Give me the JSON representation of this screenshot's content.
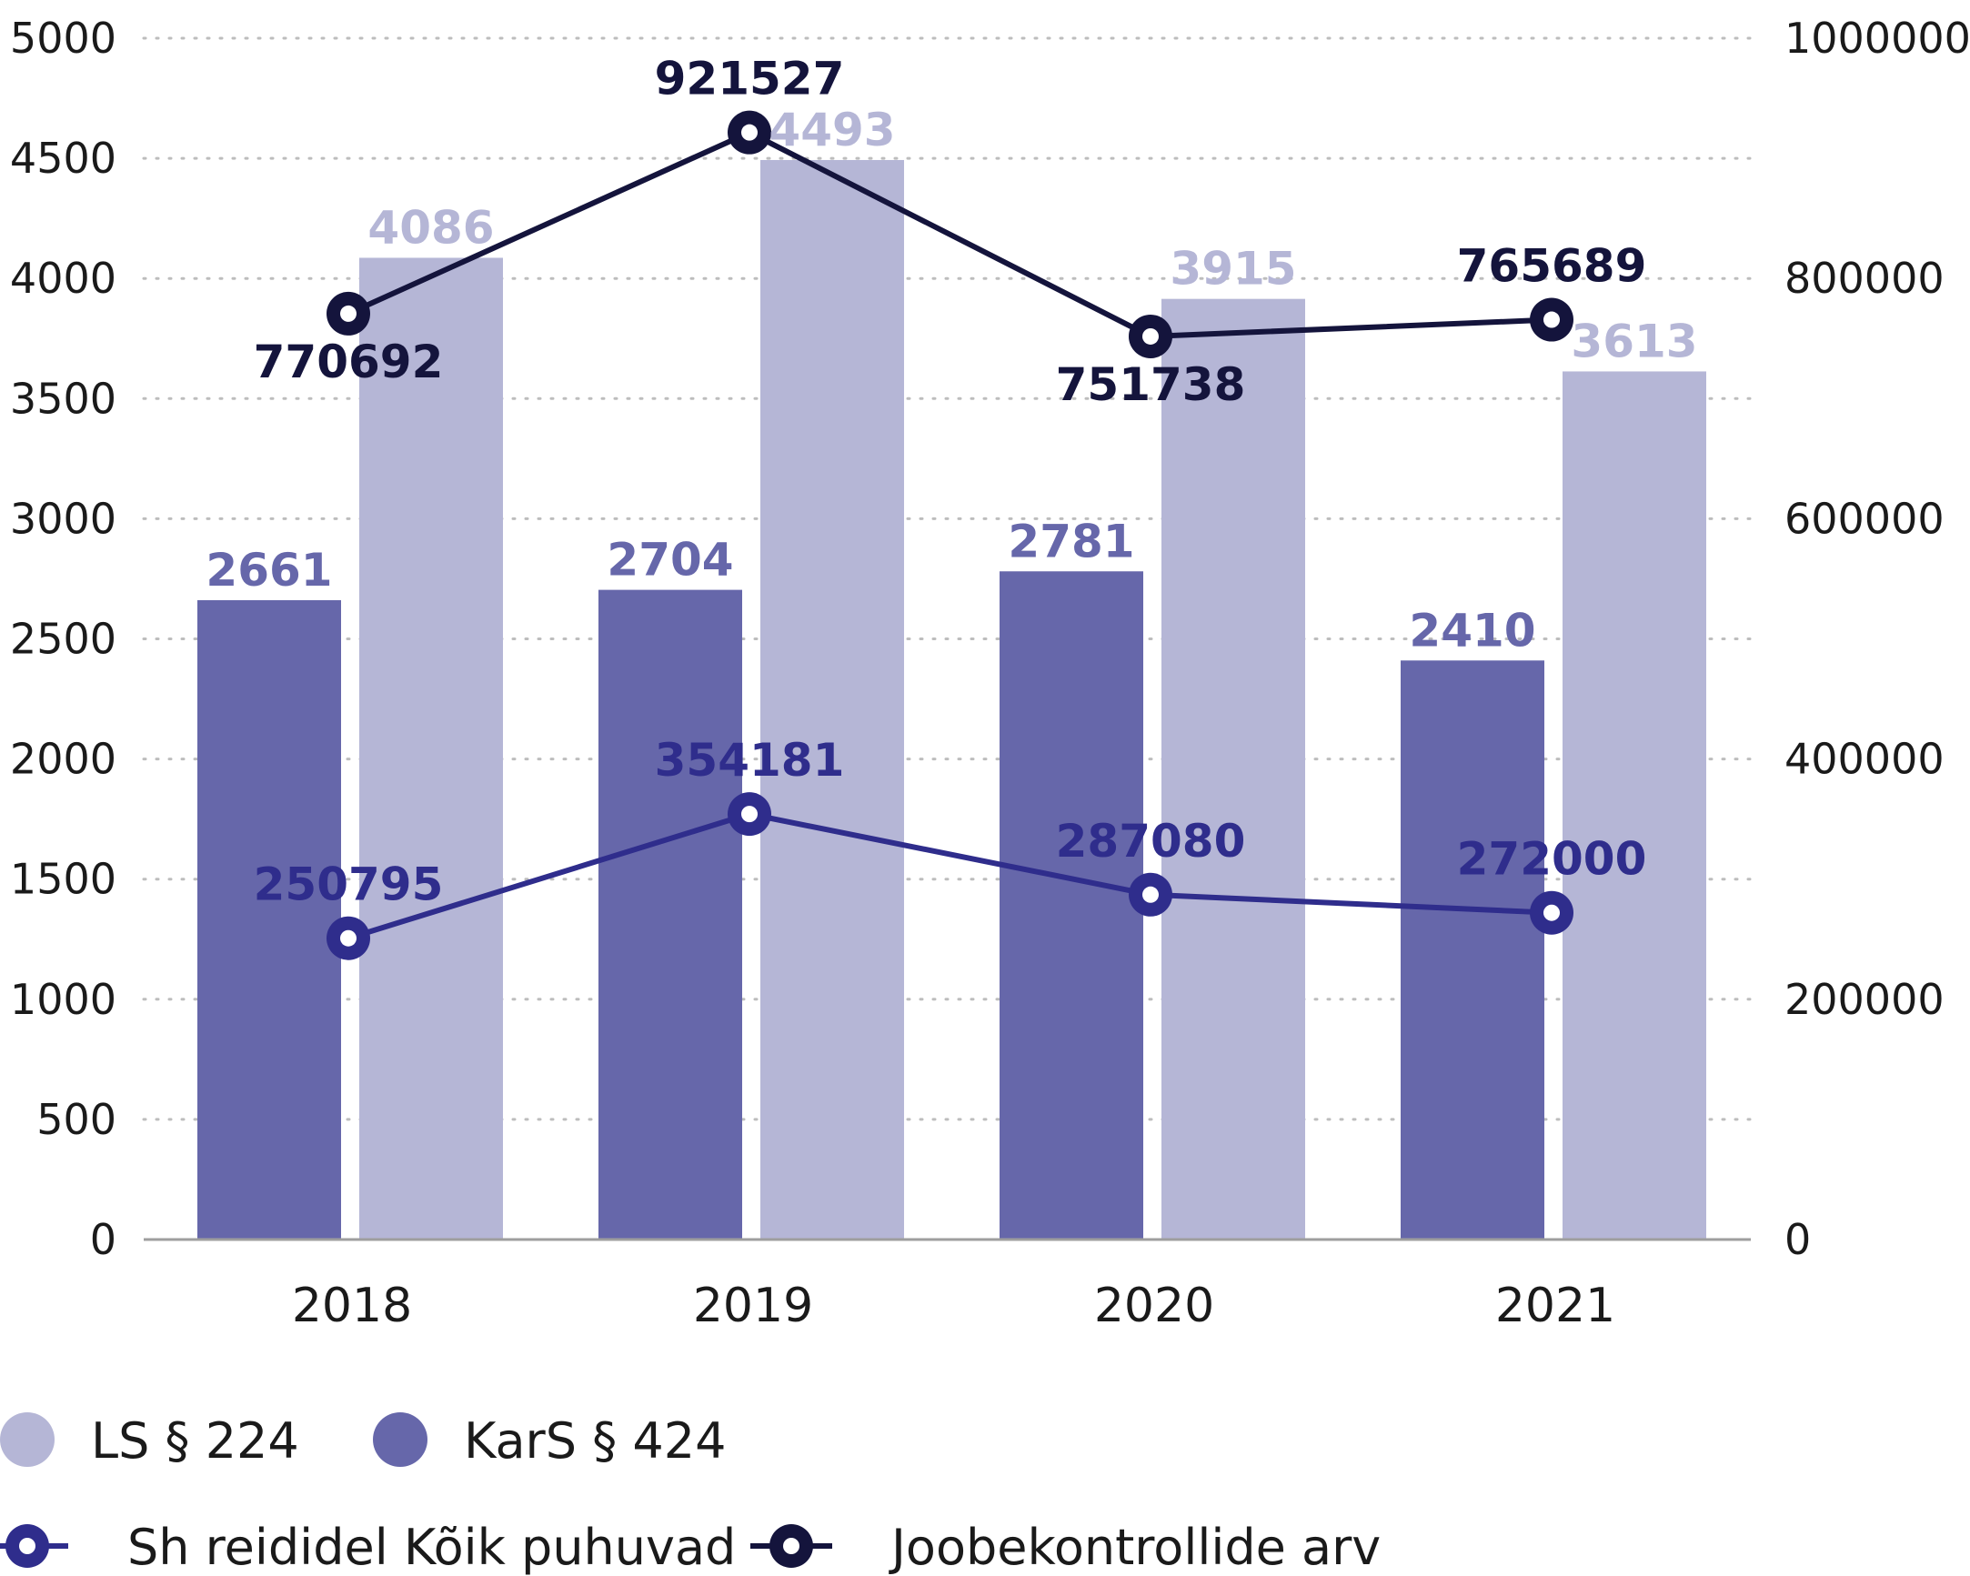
{
  "chart_data": {
    "type": "bar",
    "categories": [
      "2018",
      "2019",
      "2020",
      "2021"
    ],
    "y_left": {
      "min": 0,
      "max": 5000,
      "ticks": [
        0,
        500,
        1000,
        1500,
        2000,
        2500,
        3000,
        3500,
        4000,
        4500,
        5000
      ]
    },
    "y_right": {
      "min": 0,
      "max": 1000000,
      "ticks": [
        0,
        200000,
        400000,
        600000,
        800000,
        1000000
      ]
    },
    "grid": "dotted-horizontal",
    "series": [
      {
        "name": "KarS § 424",
        "type": "bar",
        "axis": "left",
        "color": "#6667aa",
        "values": [
          2661,
          2704,
          2781,
          2410
        ]
      },
      {
        "name": "LS § 224",
        "type": "bar",
        "axis": "left",
        "color": "#b5b6d6",
        "values": [
          4086,
          4493,
          3915,
          3613
        ]
      },
      {
        "name": "Sh reididel Kõik puhuvad",
        "type": "line",
        "axis": "right",
        "color": "#2f2d8c",
        "values": [
          250795,
          354181,
          287080,
          272000
        ]
      },
      {
        "name": "Joobekontrollide arv",
        "type": "line",
        "axis": "right",
        "color": "#14143c",
        "values": [
          770692,
          921527,
          751738,
          765689
        ]
      }
    ],
    "legend": {
      "placement": "bottom",
      "items": [
        {
          "label": "LS § 224",
          "kind": "circle",
          "color": "#b5b6d6"
        },
        {
          "label": "KarS § 424",
          "kind": "circle",
          "color": "#6667aa"
        },
        {
          "label": "Sh reididel Kõik puhuvad",
          "kind": "line-marker",
          "color": "#2f2d8c"
        },
        {
          "label": "Joobekontrollide arv",
          "kind": "line-marker",
          "color": "#14143c"
        }
      ]
    }
  }
}
